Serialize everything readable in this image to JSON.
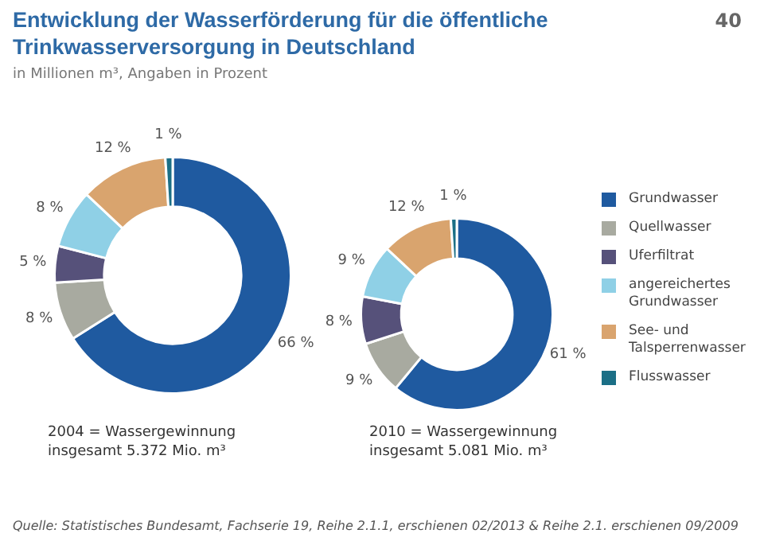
{
  "chart_data": [
    {
      "type": "donut",
      "title": "Entwicklung der Wasserförderung für die öffentliche Trinkwasserversorgung in Deutschland",
      "subtitle": "in Millionen m³, Angaben in Prozent",
      "categories": [
        "Grundwasser",
        "Quellwasser",
        "Uferfiltrat",
        "angereichertes Grundwasser",
        "See- und Talsperrenwasser",
        "Flusswasser"
      ],
      "values": [
        66,
        8,
        5,
        8,
        12,
        1
      ],
      "colors": [
        "#1f5aa0",
        "#a8aaa0",
        "#56517a",
        "#8fd0e6",
        "#d9a46e",
        "#1b6f86"
      ],
      "value_labels": [
        "66 %",
        "8 %",
        "5 %",
        "8 %",
        "12 %",
        "1 %"
      ],
      "legend": "right",
      "annotations": [
        "2004 = Wassergewinnung insgesamt 5.372 Mio. m³",
        "40"
      ]
    },
    {
      "type": "donut",
      "categories": [
        null,
        null,
        null,
        null,
        null,
        null
      ],
      "values": [
        61,
        9,
        8,
        9,
        12,
        1
      ],
      "colors": [
        "#1f5aa0",
        "#a8aaa0",
        "#56517a",
        "#8fd0e6",
        "#d9a46e",
        "#1b6f86"
      ],
      "value_labels": [
        "61 %",
        "9 %",
        "8 %",
        "9 %",
        "12 %",
        "1 %"
      ],
      "annotations": [
        "2010 = Wassergewinnung insgesamt 5.081 Mio. m³",
        "Quelle: Statistisches Bundesamt, Fachserie 19, Reihe 2.1.1, erschienen 02/2013 & Reihe 2.1. erschienen 09/2009"
      ]
    }
  ]
}
